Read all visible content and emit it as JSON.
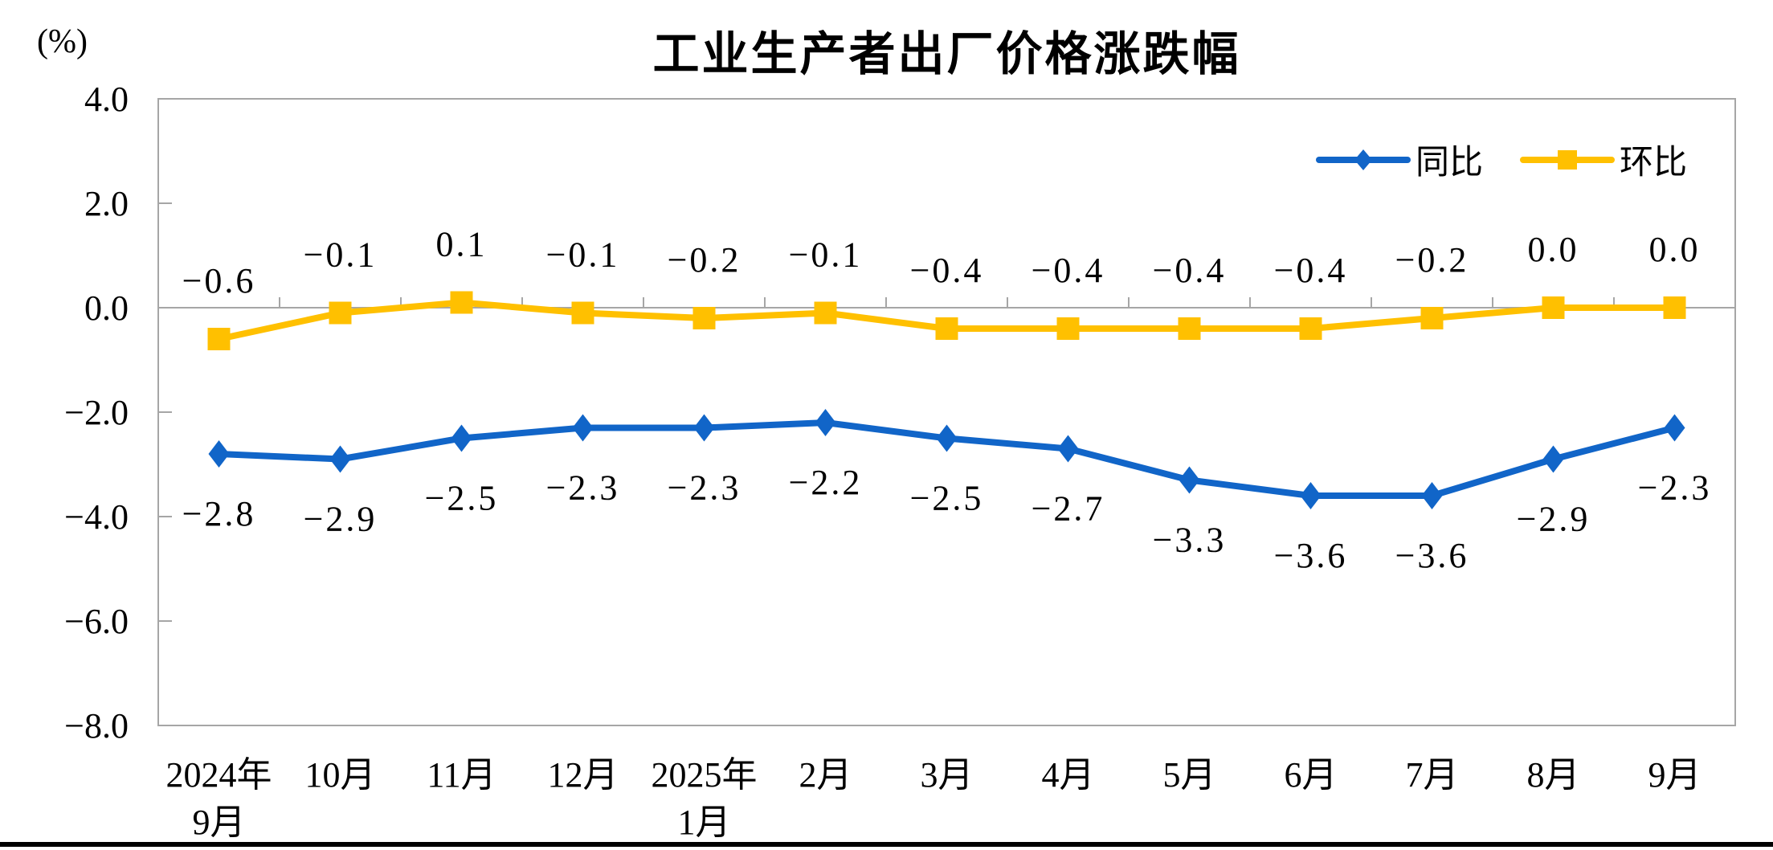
{
  "page": {
    "background": "#ffffff",
    "bottom_bar_color": "#000000"
  },
  "chart_data": {
    "type": "line",
    "title": "工业生产者出厂价格涨跌幅",
    "unit_label": "(%)",
    "categories": [
      "2024年\n9月",
      "10月",
      "11月",
      "12月",
      "2025年\n1月",
      "2月",
      "3月",
      "4月",
      "5月",
      "6月",
      "7月",
      "8月",
      "9月"
    ],
    "series": [
      {
        "name": "同比",
        "color": "#1165c8",
        "marker": "diamond",
        "label_position": "below",
        "values": [
          -2.8,
          -2.9,
          -2.5,
          -2.3,
          -2.3,
          -2.2,
          -2.5,
          -2.7,
          -3.3,
          -3.6,
          -3.6,
          -2.9,
          -2.3
        ]
      },
      {
        "name": "环比",
        "color": "#ffc000",
        "marker": "square",
        "label_position": "above",
        "values": [
          -0.6,
          -0.1,
          0.1,
          -0.1,
          -0.2,
          -0.1,
          -0.4,
          -0.4,
          -0.4,
          -0.4,
          -0.2,
          0.0,
          0.0
        ]
      }
    ],
    "y_axis": {
      "min": -8.0,
      "max": 4.0,
      "step": 2.0,
      "tick_labels": [
        "4.0",
        "2.0",
        "0.0",
        "-2.0",
        "-4.0",
        "-6.0",
        "-8.0"
      ]
    },
    "legend_position": "top-right",
    "gridlines": "zero-line-only",
    "axis_color": "#a6a6a6",
    "text_color": "#000000"
  }
}
